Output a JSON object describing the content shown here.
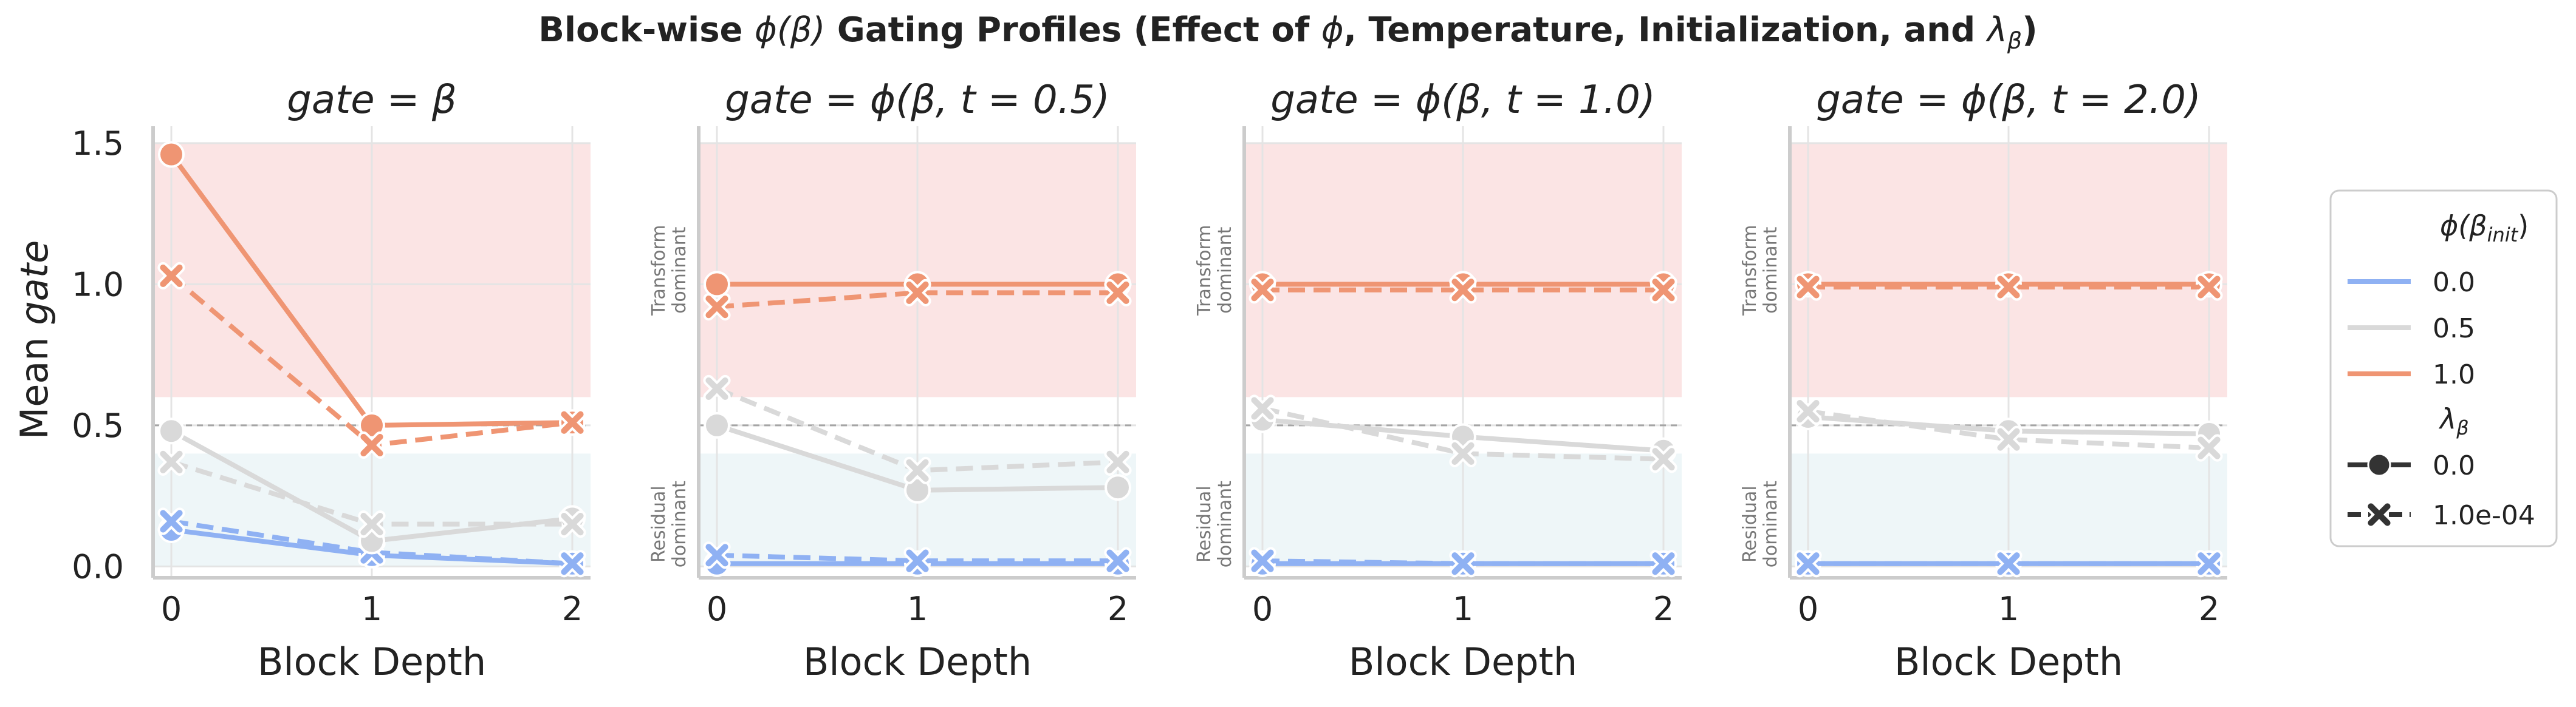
{
  "chart_data": {
    "type": "line",
    "title_prefix": "Block-wise",
    "title_main": "ϕ(β)",
    "title_suffix": "Gating Profiles (Effect of",
    "title_phi": "ϕ",
    "title_rest": ", Temperature, Initialization, and",
    "title_lambda": "λ",
    "title_lambda_sub": "β",
    "title_close": ")",
    "xlabel": "Block Depth",
    "ylabel_prefix": "Mean",
    "ylabel_italic": "gate",
    "x": [
      0,
      1,
      2
    ],
    "x_ticks": [
      "0",
      "1",
      "2"
    ],
    "ylim": [
      -0.04,
      1.56
    ],
    "y_ticks": [
      "0.0",
      "0.5",
      "1.0",
      "1.5"
    ],
    "y_tick_values": [
      0.0,
      0.5,
      1.0,
      1.5
    ],
    "reference_line": 0.5,
    "transform_band": [
      0.6,
      1.5
    ],
    "residual_band": [
      0.0,
      0.4
    ],
    "band_label_transform": [
      "Transform",
      "dominant"
    ],
    "band_label_residual": [
      "Residual",
      "dominant"
    ],
    "colors": {
      "init_0.0": "#8fb1f3",
      "init_0.5": "#d9d9d9",
      "init_1.0": "#ef9573",
      "transform_band": "#fbe4e4",
      "residual_band": "#eef6f8",
      "reference": "#a5a5a5",
      "grid": "#e4e4e4",
      "axis": "#cccccc",
      "text": "#222222"
    },
    "panels": [
      {
        "title": "gate = β",
        "show_band_labels": false,
        "series": [
          {
            "init": "0.0",
            "lambda": "0.0",
            "values": [
              0.13,
              0.04,
              0.01
            ]
          },
          {
            "init": "0.0",
            "lambda": "1.0e-04",
            "values": [
              0.16,
              0.05,
              0.01
            ]
          },
          {
            "init": "0.5",
            "lambda": "0.0",
            "values": [
              0.48,
              0.09,
              0.17
            ]
          },
          {
            "init": "0.5",
            "lambda": "1.0e-04",
            "values": [
              0.37,
              0.15,
              0.15
            ]
          },
          {
            "init": "1.0",
            "lambda": "0.0",
            "values": [
              1.46,
              0.5,
              0.51
            ]
          },
          {
            "init": "1.0",
            "lambda": "1.0e-04",
            "values": [
              1.03,
              0.43,
              0.51
            ]
          }
        ]
      },
      {
        "title": "gate = ϕ(β, t = 0.5)",
        "show_band_labels": true,
        "series": [
          {
            "init": "0.0",
            "lambda": "0.0",
            "values": [
              0.01,
              0.01,
              0.01
            ]
          },
          {
            "init": "0.0",
            "lambda": "1.0e-04",
            "values": [
              0.04,
              0.02,
              0.02
            ]
          },
          {
            "init": "0.5",
            "lambda": "0.0",
            "values": [
              0.5,
              0.27,
              0.28
            ]
          },
          {
            "init": "0.5",
            "lambda": "1.0e-04",
            "values": [
              0.63,
              0.34,
              0.37
            ]
          },
          {
            "init": "1.0",
            "lambda": "0.0",
            "values": [
              1.0,
              1.0,
              1.0
            ]
          },
          {
            "init": "1.0",
            "lambda": "1.0e-04",
            "values": [
              0.92,
              0.97,
              0.97
            ]
          }
        ]
      },
      {
        "title": "gate = ϕ(β, t = 1.0)",
        "show_band_labels": true,
        "series": [
          {
            "init": "0.0",
            "lambda": "0.0",
            "values": [
              0.01,
              0.01,
              0.01
            ]
          },
          {
            "init": "0.0",
            "lambda": "1.0e-04",
            "values": [
              0.02,
              0.01,
              0.01
            ]
          },
          {
            "init": "0.5",
            "lambda": "0.0",
            "values": [
              0.52,
              0.46,
              0.41
            ]
          },
          {
            "init": "0.5",
            "lambda": "1.0e-04",
            "values": [
              0.56,
              0.4,
              0.38
            ]
          },
          {
            "init": "1.0",
            "lambda": "0.0",
            "values": [
              1.0,
              1.0,
              1.0
            ]
          },
          {
            "init": "1.0",
            "lambda": "1.0e-04",
            "values": [
              0.98,
              0.98,
              0.98
            ]
          }
        ]
      },
      {
        "title": "gate = ϕ(β, t = 2.0)",
        "show_band_labels": true,
        "series": [
          {
            "init": "0.0",
            "lambda": "0.0",
            "values": [
              0.01,
              0.01,
              0.01
            ]
          },
          {
            "init": "0.0",
            "lambda": "1.0e-04",
            "values": [
              0.01,
              0.01,
              0.01
            ]
          },
          {
            "init": "0.5",
            "lambda": "0.0",
            "values": [
              0.53,
              0.48,
              0.47
            ]
          },
          {
            "init": "0.5",
            "lambda": "1.0e-04",
            "values": [
              0.55,
              0.45,
              0.42
            ]
          },
          {
            "init": "1.0",
            "lambda": "0.0",
            "values": [
              1.0,
              1.0,
              1.0
            ]
          },
          {
            "init": "1.0",
            "lambda": "1.0e-04",
            "values": [
              0.99,
              0.99,
              0.99
            ]
          }
        ]
      }
    ],
    "legend": {
      "placement": "right",
      "color_title": "ϕ(β",
      "color_title_sub": "init",
      "color_title_close": ")",
      "color_entries": [
        "0.0",
        "0.5",
        "1.0"
      ],
      "style_title": "λ",
      "style_title_sub": "β",
      "style_entries": [
        {
          "label": "0.0",
          "marker": "circle",
          "dash": "solid"
        },
        {
          "label": "1.0e-04",
          "marker": "x",
          "dash": "dashed"
        }
      ]
    }
  }
}
